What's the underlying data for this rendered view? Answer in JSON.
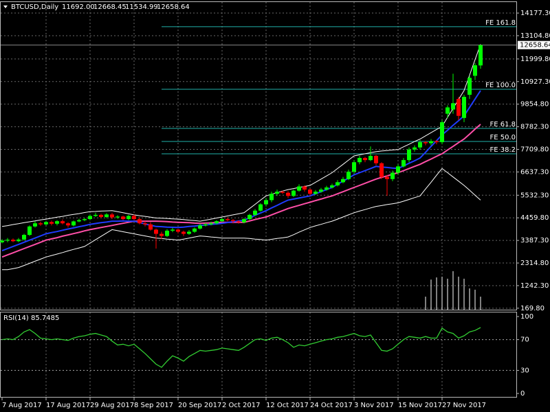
{
  "chart_data": {
    "type": "candlestick",
    "symbol": "BTCUSD,Daily",
    "header_labels": [
      "11692.00",
      "12668.45",
      "11534.99",
      "12658.64"
    ],
    "categories": [
      "7 Aug 2017",
      null,
      null,
      null,
      null,
      null,
      null,
      null,
      "17 Aug 2017",
      null,
      null,
      null,
      null,
      null,
      null,
      null,
      "29 Aug 2017",
      null,
      null,
      null,
      null,
      null,
      null,
      null,
      "8 Sep 2017",
      null,
      null,
      null,
      null,
      null,
      null,
      null,
      "20 Sep 2017",
      null,
      null,
      null,
      null,
      null,
      null,
      null,
      "2 Oct 2017",
      null,
      null,
      null,
      null,
      null,
      null,
      null,
      "12 Oct 2017",
      null,
      null,
      null,
      null,
      null,
      null,
      null,
      "24 Oct 2017",
      null,
      null,
      null,
      null,
      null,
      null,
      null,
      "3 Nov 2017",
      null,
      null,
      null,
      null,
      null,
      null,
      null,
      "15 Nov 2017",
      null,
      null,
      null,
      null,
      null,
      null,
      null,
      "27 Nov 2017",
      null,
      null,
      null,
      null,
      null,
      null,
      null
    ],
    "open": [
      3300,
      3380,
      3420,
      3350,
      3430,
      3650,
      4050,
      4200,
      4150,
      4260,
      4180,
      4300,
      4200,
      4100,
      4290,
      4350,
      4400,
      4550,
      4600,
      4500,
      4620,
      4480,
      4520,
      4400,
      4550,
      4400,
      4200,
      4150,
      3900,
      3700,
      3600,
      3850,
      3900,
      3800,
      3700,
      3800,
      3950,
      4100,
      4150,
      4200,
      4300,
      4400,
      4350,
      4300,
      4250,
      4400,
      4600,
      4800,
      5100,
      5300,
      5600,
      5700,
      5650,
      5500,
      5750,
      5950,
      5800,
      5600,
      5700,
      5800,
      5900,
      6000,
      6150,
      6300,
      6650,
      7100,
      7300,
      7200,
      7400,
      7050,
      6400,
      6300,
      6600,
      6900,
      7200,
      7700,
      7800,
      8050,
      8000,
      8100,
      8050,
      9400,
      9600,
      10100,
      9200,
      10300,
      11200,
      11692
    ],
    "high": [
      3450,
      3500,
      3480,
      3500,
      3700,
      4100,
      4300,
      4280,
      4320,
      4330,
      4350,
      4380,
      4250,
      4330,
      4420,
      4450,
      4620,
      4700,
      4650,
      4680,
      4700,
      4580,
      4560,
      4600,
      4620,
      4480,
      4300,
      4250,
      3950,
      3800,
      3920,
      3980,
      3950,
      3850,
      3880,
      4000,
      4180,
      4220,
      4280,
      4350,
      4450,
      4480,
      4400,
      4350,
      4450,
      4650,
      4880,
      5150,
      5400,
      5700,
      5800,
      5750,
      5720,
      5800,
      6050,
      6000,
      5850,
      5780,
      5880,
      5980,
      6080,
      6250,
      6400,
      6750,
      7200,
      7400,
      7350,
      7850,
      7450,
      7100,
      6500,
      6700,
      7000,
      7300,
      7800,
      7900,
      8150,
      8100,
      8200,
      8150,
      9100,
      9800,
      11300,
      10200,
      10300,
      11200,
      11800,
      12668.45
    ],
    "low": [
      3250,
      3300,
      3300,
      3300,
      3380,
      3600,
      4000,
      4080,
      4100,
      4100,
      4100,
      4150,
      4000,
      4050,
      4250,
      4300,
      4350,
      4500,
      4450,
      4450,
      4400,
      4420,
      4350,
      4350,
      4350,
      4150,
      4050,
      3850,
      3000,
      3450,
      3550,
      3780,
      3720,
      3600,
      3650,
      3750,
      3900,
      4050,
      4100,
      4150,
      4250,
      4300,
      4200,
      4180,
      4200,
      4350,
      4550,
      4750,
      5000,
      5200,
      5500,
      5600,
      5400,
      5450,
      5700,
      5700,
      5500,
      5550,
      5650,
      5750,
      5850,
      5950,
      6100,
      6250,
      6550,
      7000,
      7100,
      7150,
      6950,
      6300,
      5500,
      6200,
      6500,
      6850,
      7100,
      7600,
      7700,
      7900,
      7900,
      7950,
      7950,
      9200,
      9400,
      9100,
      9000,
      10100,
      11000,
      11534.99
    ],
    "close": [
      3380,
      3420,
      3350,
      3430,
      3650,
      4050,
      4200,
      4150,
      4260,
      4180,
      4300,
      4200,
      4100,
      4290,
      4350,
      4400,
      4550,
      4600,
      4500,
      4620,
      4480,
      4520,
      4400,
      4550,
      4400,
      4200,
      4150,
      3900,
      3700,
      3600,
      3850,
      3900,
      3800,
      3700,
      3800,
      3950,
      4100,
      4150,
      4200,
      4300,
      4400,
      4350,
      4300,
      4250,
      4400,
      4600,
      4800,
      5100,
      5300,
      5600,
      5700,
      5650,
      5500,
      5750,
      5950,
      5800,
      5600,
      5700,
      5800,
      5900,
      6000,
      6150,
      6300,
      6650,
      7100,
      7300,
      7200,
      7400,
      7050,
      6400,
      6300,
      6600,
      6900,
      7200,
      7700,
      7800,
      8050,
      8000,
      8100,
      8050,
      9000,
      9700,
      9900,
      9300,
      10200,
      11100,
      11700,
      12658.64
    ],
    "up_color": "#00ff00",
    "down_color": "#ff0000",
    "overlays": [
      {
        "color": "#ffffff",
        "width": 1,
        "values": [
          4050,
          4090,
          4140,
          4180,
          4230,
          4270,
          4310,
          4360,
          4400,
          4440,
          4490,
          4530,
          4580,
          4620,
          4660,
          4710,
          4750,
          4760,
          4780,
          4790,
          4800,
          4750,
          4700,
          4650,
          4600,
          4560,
          4530,
          4490,
          4450,
          4440,
          4430,
          4410,
          4400,
          4380,
          4350,
          4330,
          4300,
          4350,
          4400,
          4450,
          4500,
          4550,
          4600,
          4650,
          4700,
          4900,
          5100,
          5300,
          5500,
          5580,
          5650,
          5730,
          5800,
          5850,
          5900,
          5950,
          6000,
          6150,
          6300,
          6450,
          6600,
          6800,
          7000,
          7200,
          7400,
          7450,
          7500,
          7550,
          7600,
          7630,
          7650,
          7680,
          7700,
          7830,
          7950,
          8080,
          8200,
          8350,
          8500,
          8650,
          8800,
          9230,
          9650,
          10080,
          10500,
          11230,
          11970,
          12700
        ]
      },
      {
        "color": "#ffffff",
        "width": 1,
        "values": [
          2000,
          2000,
          2050,
          2100,
          2200,
          2300,
          2400,
          2500,
          2600,
          2670,
          2740,
          2810,
          2890,
          2960,
          3030,
          3100,
          3260,
          3420,
          3580,
          3740,
          3900,
          3850,
          3800,
          3750,
          3700,
          3650,
          3600,
          3550,
          3500,
          3480,
          3450,
          3430,
          3400,
          3450,
          3500,
          3550,
          3600,
          3580,
          3550,
          3530,
          3500,
          3500,
          3500,
          3500,
          3500,
          3480,
          3450,
          3430,
          3400,
          3440,
          3480,
          3510,
          3550,
          3660,
          3780,
          3890,
          4000,
          4080,
          4150,
          4230,
          4300,
          4400,
          4500,
          4600,
          4700,
          4780,
          4850,
          4930,
          5000,
          5040,
          5090,
          5130,
          5170,
          5250,
          5330,
          5420,
          5500,
          5830,
          6150,
          6480,
          6800,
          6600,
          6400,
          6200,
          6000,
          5770,
          5530,
          5300
        ]
      },
      {
        "color": "#ff4fa8",
        "width": 2,
        "values": [
          2600,
          2700,
          2800,
          2900,
          3000,
          3100,
          3200,
          3300,
          3400,
          3460,
          3520,
          3590,
          3650,
          3710,
          3770,
          3840,
          3900,
          3950,
          4000,
          4050,
          4100,
          4150,
          4200,
          4250,
          4300,
          4300,
          4300,
          4300,
          4300,
          4290,
          4280,
          4260,
          4250,
          4240,
          4230,
          4210,
          4200,
          4210,
          4220,
          4240,
          4250,
          4250,
          4250,
          4250,
          4250,
          4310,
          4380,
          4440,
          4500,
          4600,
          4700,
          4800,
          4900,
          4980,
          5050,
          5130,
          5200,
          5280,
          5350,
          5430,
          5500,
          5600,
          5700,
          5800,
          5900,
          6000,
          6100,
          6200,
          6300,
          6380,
          6450,
          6530,
          6600,
          6700,
          6800,
          6900,
          7000,
          7130,
          7250,
          7380,
          7500,
          7680,
          7850,
          8030,
          8200,
          8430,
          8670,
          8900
        ]
      },
      {
        "color": "#1f3cff",
        "width": 2,
        "values": [
          2900,
          3000,
          3100,
          3200,
          3300,
          3400,
          3500,
          3600,
          3700,
          3760,
          3810,
          3870,
          3930,
          3980,
          4040,
          4090,
          4150,
          4190,
          4230,
          4260,
          4300,
          4300,
          4310,
          4300,
          4300,
          4240,
          4170,
          4110,
          4050,
          4040,
          4020,
          4010,
          4000,
          4020,
          4050,
          4070,
          4100,
          4120,
          4150,
          4170,
          4200,
          4240,
          4270,
          4310,
          4350,
          4460,
          4580,
          4690,
          4800,
          4930,
          5050,
          5180,
          5300,
          5350,
          5400,
          5450,
          5500,
          5600,
          5700,
          5800,
          5900,
          6050,
          6200,
          6350,
          6500,
          6600,
          6700,
          6800,
          6900,
          6870,
          6850,
          6820,
          6800,
          6920,
          7050,
          7170,
          7300,
          7570,
          7850,
          8120,
          8400,
          8620,
          8850,
          9070,
          9300,
          9700,
          10100,
          10500
        ]
      }
    ],
    "histogram": {
      "color": "#ffffff",
      "values": [
        null,
        null,
        null,
        null,
        null,
        null,
        null,
        null,
        null,
        null,
        null,
        null,
        null,
        null,
        null,
        null,
        null,
        null,
        null,
        null,
        null,
        null,
        null,
        null,
        null,
        null,
        null,
        null,
        null,
        null,
        null,
        null,
        null,
        null,
        null,
        null,
        null,
        null,
        null,
        null,
        null,
        null,
        null,
        null,
        null,
        null,
        null,
        null,
        null,
        null,
        null,
        null,
        null,
        null,
        null,
        null,
        null,
        null,
        null,
        null,
        null,
        null,
        null,
        null,
        null,
        null,
        null,
        null,
        null,
        null,
        null,
        null,
        null,
        null,
        null,
        null,
        null,
        720,
        1530,
        1630,
        1670,
        1570,
        1930,
        1670,
        1570,
        1110,
        1050,
        720
      ]
    },
    "ylim": [
      100,
      14700
    ],
    "yticks": [
      {
        "value": 14177.3,
        "label": "14177.30"
      },
      {
        "value": 13104.8,
        "label": "13104.80"
      },
      {
        "value": 11999.8,
        "label": "11999.80"
      },
      {
        "value": 10927.3,
        "label": "10927.30"
      },
      {
        "value": 9854.8,
        "label": "9854.80"
      },
      {
        "value": 8782.3,
        "label": "8782.30"
      },
      {
        "value": 7709.8,
        "label": "7709.80"
      },
      {
        "value": 6637.3,
        "label": "6637.30"
      },
      {
        "value": 5532.3,
        "label": "5532.30"
      },
      {
        "value": 4459.8,
        "label": "4459.80"
      },
      {
        "value": 3387.3,
        "label": "3387.30"
      },
      {
        "value": 2314.8,
        "label": "2314.80"
      },
      {
        "value": 1242.3,
        "label": "1242.30"
      },
      {
        "value": 169.8,
        "label": "169.80"
      }
    ],
    "grid": true,
    "fibo_color": "#20b2aa",
    "fibo_levels": [
      {
        "label": "FE 161.8",
        "value": 13529
      },
      {
        "label": "FE 100.0",
        "value": 10563
      },
      {
        "label": "FE 61.8",
        "value": 8705
      },
      {
        "label": "FE 50.0",
        "value": 8086
      },
      {
        "label": "FE 38.2",
        "value": 7499
      }
    ],
    "rsi": {
      "label": "RSI(14)",
      "color": "#32cd32",
      "ylim": [
        0,
        100
      ],
      "yticks": [
        100,
        70,
        30,
        0
      ],
      "levels": [
        70,
        30
      ],
      "values": [
        70,
        71,
        70,
        74,
        80,
        83,
        78,
        72,
        71,
        70,
        71,
        70,
        69,
        72,
        74,
        75,
        77,
        78,
        76,
        74,
        68,
        63,
        64,
        62,
        64,
        58,
        52,
        45,
        38,
        34,
        42,
        49,
        46,
        42,
        48,
        52,
        56,
        55,
        56,
        57,
        59,
        58,
        57,
        56,
        60,
        65,
        70,
        71,
        69,
        72,
        73,
        70,
        66,
        60,
        63,
        62,
        64,
        66,
        68,
        70,
        71,
        73,
        74,
        76,
        78,
        75,
        74,
        76,
        66,
        56,
        55,
        58,
        64,
        70,
        74,
        73,
        72,
        74,
        72,
        72,
        85,
        80,
        78,
        72,
        75,
        80,
        82,
        85.7485
      ]
    }
  }
}
